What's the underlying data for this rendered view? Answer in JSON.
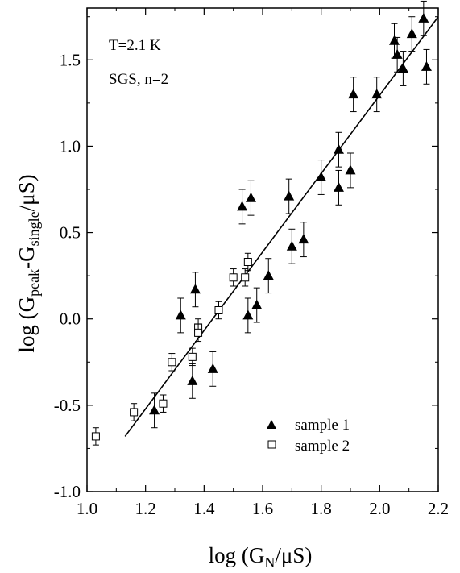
{
  "chart_data": {
    "type": "scatter",
    "xlabel": {
      "prefix": "log (G",
      "sub": "N",
      "suffix": "/μS)"
    },
    "ylabel": {
      "prefix": "log (G",
      "sub1": "peak",
      "mid": "-G",
      "sub2": "single",
      "suffix": "/μS)"
    },
    "xlim": [
      1.0,
      2.2
    ],
    "ylim": [
      -1.0,
      1.8
    ],
    "x_ticks": [
      "1.0",
      "1.2",
      "1.4",
      "1.6",
      "1.8",
      "2.0",
      "2.2"
    ],
    "y_ticks": [
      "-1.0",
      "-0.5",
      "0.0",
      "0.5",
      "1.0",
      "1.5"
    ],
    "annotations": [
      "T=2.1 K",
      "SGS, n=2"
    ],
    "legend_position": "bottom-right",
    "fit_line": {
      "x": [
        1.13,
        2.2
      ],
      "y": [
        -0.68,
        1.75
      ]
    },
    "series": [
      {
        "name": "sample 1",
        "marker": "filled-triangle",
        "points": [
          [
            1.23,
            -0.53,
            0.1
          ],
          [
            1.32,
            0.02,
            0.1
          ],
          [
            1.36,
            -0.36,
            0.1
          ],
          [
            1.37,
            0.17,
            0.1
          ],
          [
            1.43,
            -0.29,
            0.1
          ],
          [
            1.53,
            0.65,
            0.1
          ],
          [
            1.55,
            0.02,
            0.1
          ],
          [
            1.56,
            0.7,
            0.1
          ],
          [
            1.58,
            0.08,
            0.1
          ],
          [
            1.62,
            0.25,
            0.1
          ],
          [
            1.69,
            0.71,
            0.1
          ],
          [
            1.7,
            0.42,
            0.1
          ],
          [
            1.74,
            0.46,
            0.1
          ],
          [
            1.8,
            0.82,
            0.1
          ],
          [
            1.86,
            0.76,
            0.1
          ],
          [
            1.86,
            0.98,
            0.1
          ],
          [
            1.9,
            0.86,
            0.1
          ],
          [
            1.91,
            1.3,
            0.1
          ],
          [
            1.99,
            1.3,
            0.1
          ],
          [
            2.05,
            1.61,
            0.1
          ],
          [
            2.06,
            1.53,
            0.1
          ],
          [
            2.08,
            1.45,
            0.1
          ],
          [
            2.11,
            1.65,
            0.1
          ],
          [
            2.15,
            1.74,
            0.1
          ],
          [
            2.16,
            1.46,
            0.1
          ]
        ]
      },
      {
        "name": "sample 2",
        "marker": "open-square",
        "points": [
          [
            1.03,
            -0.68,
            0.05
          ],
          [
            1.16,
            -0.54,
            0.05
          ],
          [
            1.26,
            -0.49,
            0.05
          ],
          [
            1.29,
            -0.25,
            0.05
          ],
          [
            1.36,
            -0.22,
            0.05
          ],
          [
            1.38,
            -0.05,
            0.05
          ],
          [
            1.38,
            -0.08,
            0.05
          ],
          [
            1.45,
            0.05,
            0.05
          ],
          [
            1.5,
            0.24,
            0.05
          ],
          [
            1.54,
            0.24,
            0.05
          ],
          [
            1.55,
            0.33,
            0.05
          ]
        ]
      }
    ]
  }
}
